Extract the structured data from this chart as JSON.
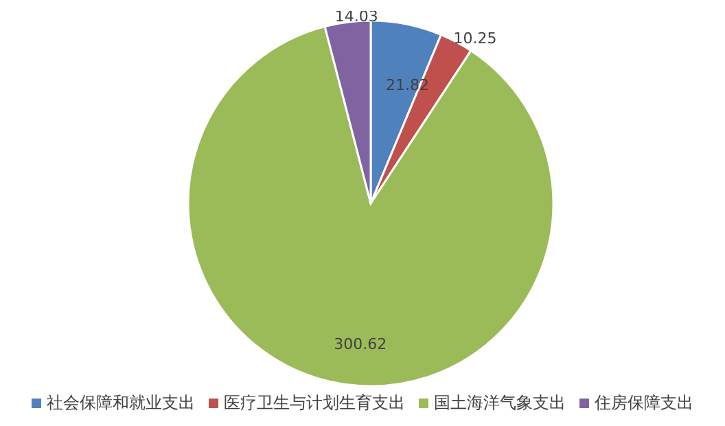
{
  "chart_data": {
    "type": "pie",
    "categories": [
      "社会保障和就业支出",
      "医疗卫生与计划生育支出",
      "国土海洋气象支出",
      "住房保障支出"
    ],
    "values": [
      21.82,
      10.25,
      300.62,
      14.03
    ],
    "colors": [
      "#4f81bd",
      "#c0504d",
      "#9bbb59",
      "#8064a2"
    ],
    "data_labels": true,
    "legend": "bottom"
  }
}
